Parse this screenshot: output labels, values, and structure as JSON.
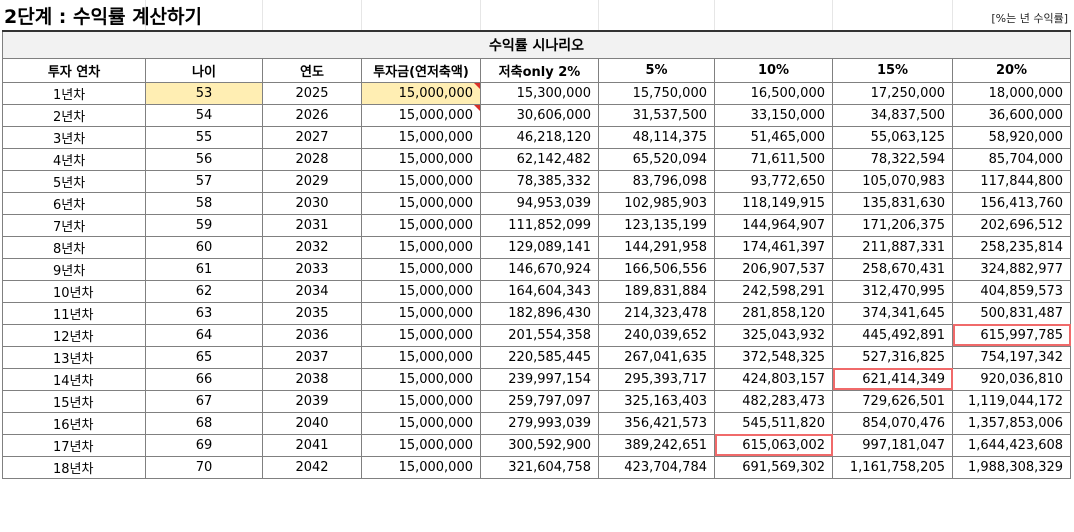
{
  "title": "2단계 : 수익률 계산하기",
  "note": "[%는 년 수익률]",
  "banner": "수익률 시나리오",
  "headers": [
    "투자 연차",
    "나이",
    "연도",
    "투자금(연저축액)",
    "저축only 2%",
    "5%",
    "10%",
    "15%",
    "20%"
  ],
  "rows": [
    [
      "1년차",
      "53",
      "2025",
      "15,000,000",
      "15,300,000",
      "15,750,000",
      "16,500,000",
      "17,250,000",
      "18,000,000"
    ],
    [
      "2년차",
      "54",
      "2026",
      "15,000,000",
      "30,606,000",
      "31,537,500",
      "33,150,000",
      "34,837,500",
      "36,600,000"
    ],
    [
      "3년차",
      "55",
      "2027",
      "15,000,000",
      "46,218,120",
      "48,114,375",
      "51,465,000",
      "55,063,125",
      "58,920,000"
    ],
    [
      "4년차",
      "56",
      "2028",
      "15,000,000",
      "62,142,482",
      "65,520,094",
      "71,611,500",
      "78,322,594",
      "85,704,000"
    ],
    [
      "5년차",
      "57",
      "2029",
      "15,000,000",
      "78,385,332",
      "83,796,098",
      "93,772,650",
      "105,070,983",
      "117,844,800"
    ],
    [
      "6년차",
      "58",
      "2030",
      "15,000,000",
      "94,953,039",
      "102,985,903",
      "118,149,915",
      "135,831,630",
      "156,413,760"
    ],
    [
      "7년차",
      "59",
      "2031",
      "15,000,000",
      "111,852,099",
      "123,135,199",
      "144,964,907",
      "171,206,375",
      "202,696,512"
    ],
    [
      "8년차",
      "60",
      "2032",
      "15,000,000",
      "129,089,141",
      "144,291,958",
      "174,461,397",
      "211,887,331",
      "258,235,814"
    ],
    [
      "9년차",
      "61",
      "2033",
      "15,000,000",
      "146,670,924",
      "166,506,556",
      "206,907,537",
      "258,670,431",
      "324,882,977"
    ],
    [
      "10년차",
      "62",
      "2034",
      "15,000,000",
      "164,604,343",
      "189,831,884",
      "242,598,291",
      "312,470,995",
      "404,859,573"
    ],
    [
      "11년차",
      "63",
      "2035",
      "15,000,000",
      "182,896,430",
      "214,323,478",
      "281,858,120",
      "374,341,645",
      "500,831,487"
    ],
    [
      "12년차",
      "64",
      "2036",
      "15,000,000",
      "201,554,358",
      "240,039,652",
      "325,043,932",
      "445,492,891",
      "615,997,785"
    ],
    [
      "13년차",
      "65",
      "2037",
      "15,000,000",
      "220,585,445",
      "267,041,635",
      "372,548,325",
      "527,316,825",
      "754,197,342"
    ],
    [
      "14년차",
      "66",
      "2038",
      "15,000,000",
      "239,997,154",
      "295,393,717",
      "424,803,157",
      "621,414,349",
      "920,036,810"
    ],
    [
      "15년차",
      "67",
      "2039",
      "15,000,000",
      "259,797,097",
      "325,163,403",
      "482,283,473",
      "729,626,501",
      "1,119,044,172"
    ],
    [
      "16년차",
      "68",
      "2040",
      "15,000,000",
      "279,993,039",
      "356,421,573",
      "545,511,820",
      "854,070,476",
      "1,357,853,006"
    ],
    [
      "17년차",
      "69",
      "2041",
      "15,000,000",
      "300,592,900",
      "389,242,651",
      "615,063,002",
      "997,181,047",
      "1,644,423,608"
    ],
    [
      "18년차",
      "70",
      "2042",
      "15,000,000",
      "321,604,758",
      "423,704,784",
      "691,569,302",
      "1,161,758,205",
      "1,988,308,329"
    ]
  ],
  "colors": {
    "highlight_border": "#f06a6a",
    "input_fill": "#ffeeb3",
    "comment_marker": "#d9302a"
  }
}
